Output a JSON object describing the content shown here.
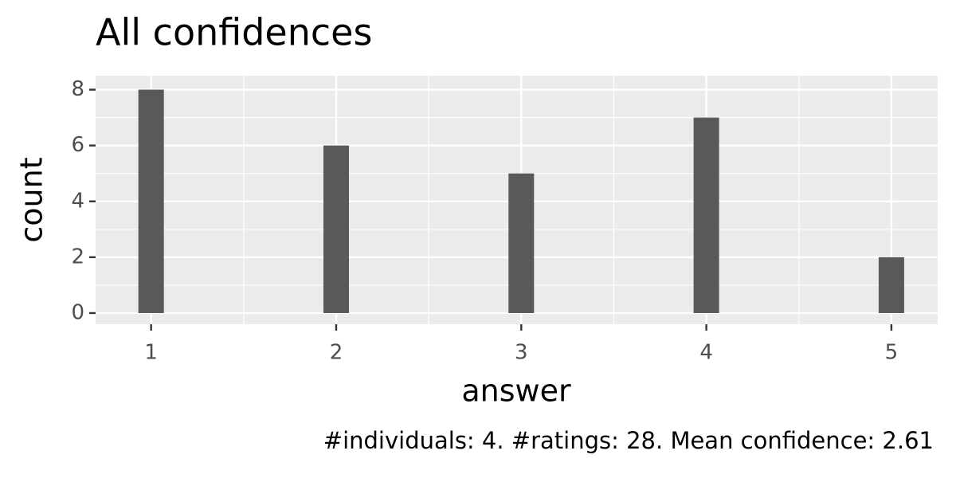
{
  "chart_data": {
    "type": "bar",
    "title": "All confidences",
    "x_label": "answer",
    "y_label": "count",
    "caption": "#individuals: 4. #ratings: 28. Mean confidence: 2.61",
    "x": [
      1,
      2,
      3,
      4,
      5
    ],
    "values": [
      8,
      6,
      5,
      7,
      2
    ],
    "color": "#595959",
    "xlim": [
      0.7,
      5.25
    ],
    "xticks": [
      1,
      2,
      3,
      4,
      5
    ],
    "ylim": [
      -0.4,
      8.5
    ],
    "yticks": [
      0,
      2,
      4,
      6,
      8
    ],
    "grid": true
  }
}
